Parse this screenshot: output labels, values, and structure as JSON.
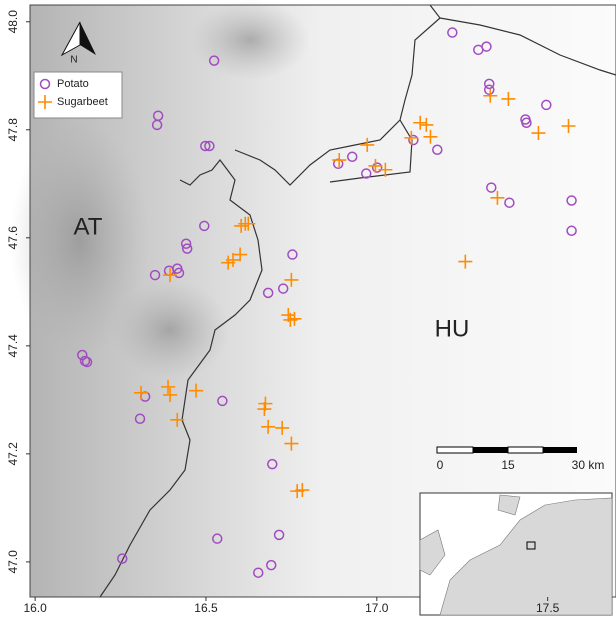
{
  "chart_data": {
    "type": "scatter",
    "xlim": [
      15.985,
      17.7
    ],
    "ylim": [
      46.935,
      48.031
    ],
    "xticks": [
      {
        "value": 16.0,
        "label": "16.0"
      },
      16.5,
      {
        "value": 17.0,
        "label": "17.0"
      },
      17.5
    ],
    "yticks": [
      {
        "value": 47.0,
        "label": "47.0"
      },
      47.2,
      47.4,
      47.6,
      47.8,
      {
        "value": 48.0,
        "label": "48.0"
      }
    ],
    "legend": "top-left",
    "annotations": {
      "at": "AT",
      "hu": "HU",
      "north": "N",
      "scale": [
        "0",
        "15",
        "30 km"
      ]
    },
    "series": [
      {
        "name": "Potato",
        "color": "#a04cc0",
        "marker": "circle",
        "x": [
          16.524,
          16.36,
          16.357,
          16.498,
          16.51,
          16.495,
          16.442,
          16.445,
          16.416,
          16.421,
          16.392,
          16.351,
          16.753,
          16.726,
          16.682,
          16.138,
          16.146,
          16.152,
          16.322,
          16.307,
          16.548,
          16.694,
          16.714,
          16.533,
          16.691,
          16.653,
          16.255,
          17.221,
          17.297,
          17.321,
          17.329,
          17.329,
          17.496,
          17.435,
          17.438,
          16.887,
          16.928,
          16.969,
          17.001,
          17.107,
          17.177,
          17.335,
          17.388,
          17.57,
          17.57
        ],
        "values": [
          47.928,
          47.826,
          47.809,
          47.77,
          47.77,
          47.622,
          47.589,
          47.58,
          47.543,
          47.535,
          47.539,
          47.531,
          47.569,
          47.506,
          47.498,
          47.383,
          47.372,
          47.37,
          47.306,
          47.265,
          47.298,
          47.181,
          47.05,
          47.043,
          46.994,
          46.98,
          47.006,
          47.98,
          47.948,
          47.954,
          47.885,
          47.874,
          47.846,
          47.819,
          47.813,
          47.737,
          47.75,
          47.719,
          47.73,
          47.781,
          47.763,
          47.693,
          47.665,
          47.669,
          47.613
        ]
      },
      {
        "name": "Sugarbeet",
        "color": "#ff8c00",
        "marker": "plus",
        "x": [
          16.395,
          16.565,
          16.579,
          16.6,
          16.603,
          16.615,
          16.624,
          16.75,
          16.741,
          16.747,
          16.759,
          16.31,
          16.389,
          16.395,
          16.471,
          16.416,
          16.674,
          16.671,
          16.682,
          16.723,
          16.75,
          16.767,
          16.782,
          16.89,
          16.972,
          16.996,
          17.025,
          17.101,
          17.127,
          17.145,
          17.157,
          17.332,
          17.385,
          17.473,
          17.561,
          17.353,
          17.259
        ],
        "values": [
          47.531,
          47.554,
          47.559,
          47.569,
          47.622,
          47.626,
          47.626,
          47.522,
          47.457,
          47.448,
          47.45,
          47.313,
          47.324,
          47.309,
          47.317,
          47.263,
          47.293,
          47.283,
          47.25,
          47.248,
          47.219,
          47.131,
          47.133,
          47.744,
          47.772,
          47.733,
          47.726,
          47.785,
          47.813,
          47.809,
          47.787,
          47.863,
          47.857,
          47.794,
          47.807,
          47.674,
          47.556
        ]
      }
    ]
  }
}
